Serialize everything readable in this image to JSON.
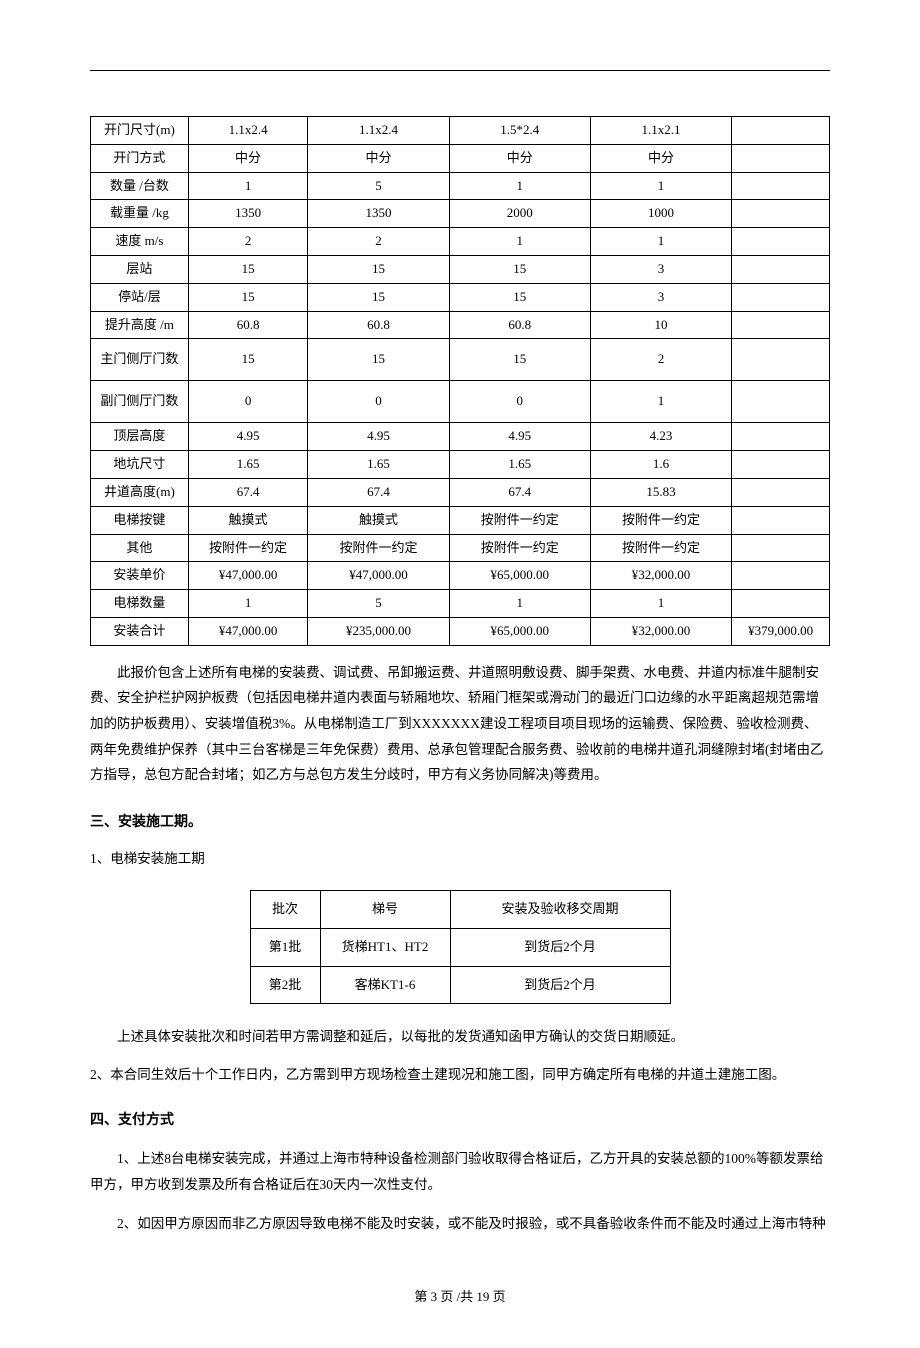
{
  "spec_table": {
    "rows": [
      {
        "label": "开门尺寸(m)",
        "v1": "1.1x2.4",
        "v2": "1.1x2.4",
        "v3": "1.5*2.4",
        "v4": "1.1x2.1",
        "v5": ""
      },
      {
        "label": "开门方式",
        "v1": "中分",
        "v2": "中分",
        "v3": "中分",
        "v4": "中分",
        "v5": ""
      },
      {
        "label": "数量 /台数",
        "v1": "1",
        "v2": "5",
        "v3": "1",
        "v4": "1",
        "v5": ""
      },
      {
        "label": "载重量 /kg",
        "v1": "1350",
        "v2": "1350",
        "v3": "2000",
        "v4": "1000",
        "v5": ""
      },
      {
        "label": "速度  m/s",
        "v1": "2",
        "v2": "2",
        "v3": "1",
        "v4": "1",
        "v5": ""
      },
      {
        "label": "层站",
        "v1": "15",
        "v2": "15",
        "v3": "15",
        "v4": "3",
        "v5": ""
      },
      {
        "label": "停站/层",
        "v1": "15",
        "v2": "15",
        "v3": "15",
        "v4": "3",
        "v5": ""
      },
      {
        "label": "提升高度 /m",
        "v1": "60.8",
        "v2": "60.8",
        "v3": "60.8",
        "v4": "10",
        "v5": ""
      },
      {
        "label": "主门侧厅门数",
        "v1": "15",
        "v2": "15",
        "v3": "15",
        "v4": "2",
        "v5": "",
        "tall": true
      },
      {
        "label": "副门侧厅门数",
        "v1": "0",
        "v2": "0",
        "v3": "0",
        "v4": "1",
        "v5": "",
        "tall": true
      },
      {
        "label": "顶层高度",
        "v1": "4.95",
        "v2": "4.95",
        "v3": "4.95",
        "v4": "4.23",
        "v5": ""
      },
      {
        "label": "地坑尺寸",
        "v1": "1.65",
        "v2": "1.65",
        "v3": "1.65",
        "v4": "1.6",
        "v5": ""
      },
      {
        "label": "井道高度(m)",
        "v1": "67.4",
        "v2": "67.4",
        "v3": "67.4",
        "v4": "15.83",
        "v5": ""
      },
      {
        "label": "电梯按键",
        "v1": "触摸式",
        "v2": "触摸式",
        "v3": "按附件一约定",
        "v4": "按附件一约定",
        "v5": ""
      },
      {
        "label": "其他",
        "v1": "按附件一约定",
        "v2": "按附件一约定",
        "v3": "按附件一约定",
        "v4": "按附件一约定",
        "v5": ""
      },
      {
        "label": "安装单价",
        "v1": "¥47,000.00",
        "v2": "¥47,000.00",
        "v3": "¥65,000.00",
        "v4": "¥32,000.00",
        "v5": ""
      },
      {
        "label": "电梯数量",
        "v1": "1",
        "v2": "5",
        "v3": "1",
        "v4": "1",
        "v5": ""
      },
      {
        "label": "安装合计",
        "v1": "¥47,000.00",
        "v2": "¥235,000.00",
        "v3": "¥65,000.00",
        "v4": "¥32,000.00",
        "v5": "¥379,000.00"
      }
    ]
  },
  "paragraph_quote": "此报价包含上述所有电梯的安装费、调试费、吊卸搬运费、井道照明敷设费、脚手架费、水电费、井道内标准牛腿制安费、安全护栏护网护板费（包括因电梯井道内表面与轿厢地坎、轿厢门框架或滑动门的最近门口边缘的水平距离超规范需增加的防护板费用）、安装增值税3%。从电梯制造工厂到XXXXXXX建设工程项目项目现场的运输费、保险费、验收检测费、两年免费维护保养（其中三台客梯是三年免保费）费用、总承包管理配合服务费、验收前的电梯井道孔洞缝隙封堵(封堵由乙方指导，总包方配合封堵；如乙方与总包方发生分歧时，甲方有义务协同解决)等费用。",
  "section3": {
    "title": "三、安装施工期。",
    "sub1": "1、电梯安装施工期",
    "table": {
      "headers": {
        "batch": "批次",
        "num": "梯号",
        "period": "安装及验收移交周期"
      },
      "rows": [
        {
          "batch": "第1批",
          "num": "货梯HT1、HT2",
          "period": "到货后2个月"
        },
        {
          "batch": "第2批",
          "num": "客梯KT1-6",
          "period": "到货后2个月"
        }
      ]
    },
    "note": "上述具体安装批次和时间若甲方需调整和延后，以每批的发货通知函甲方确认的交货日期顺延。",
    "sub2": "2、本合同生效后十个工作日内，乙方需到甲方现场检查土建现况和施工图，同甲方确定所有电梯的井道土建施工图。"
  },
  "section4": {
    "title": "四、支付方式",
    "p1": "1、上述8台电梯安装完成，并通过上海市特种设备检测部门验收取得合格证后，乙方开具的安装总额的100%等额发票给甲方，甲方收到发票及所有合格证后在30天内一次性支付。",
    "p2": "2、如因甲方原因而非乙方原因导致电梯不能及时安装，或不能及时报验，或不具备验收条件而不能及时通过上海市特种"
  },
  "footer": "第 3 页  /共  19 页"
}
